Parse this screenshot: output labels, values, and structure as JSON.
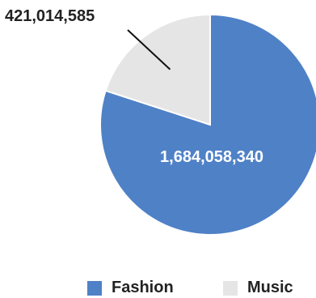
{
  "chart_data": {
    "type": "pie",
    "slices": [
      {
        "label": "Fashion",
        "value": 1684058340,
        "value_label": "1,684,058,340",
        "color": "#4f81c7"
      },
      {
        "label": "Music",
        "value": 421014585,
        "value_label": "421,014,585",
        "color": "#e5e5e5"
      }
    ],
    "legend": {
      "position": "bottom"
    }
  }
}
